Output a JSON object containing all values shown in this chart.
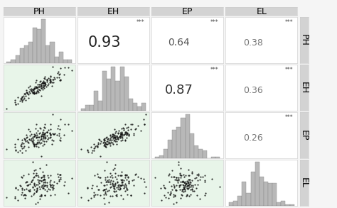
{
  "variables": [
    "PH",
    "EH",
    "EP",
    "EL"
  ],
  "correlations": {
    "0_1": 0.93,
    "0_2": 0.64,
    "0_3": 0.38,
    "1_2": 0.87,
    "1_3": 0.36,
    "2_3": 0.26
  },
  "significance": "***",
  "scatter_bg": "#e8f5e9",
  "hist_bg": "#ffffff",
  "corr_bg": "#ffffff",
  "header_bg": "#d3d3d3",
  "bar_color": "#b8b8b8",
  "bar_edge": "#888888",
  "dot_color": "#111111",
  "dot_size": 2.5,
  "border_color": "#cccccc",
  "fig_bg": "#f5f5f5",
  "header_fontsize": 9,
  "corr_fontsize_095": 15,
  "corr_fontsize_080": 13,
  "corr_fontsize_050": 10,
  "corr_fontsize_small": 9,
  "sig_fontsize": 5.5,
  "seed": 42,
  "n_points": 150
}
